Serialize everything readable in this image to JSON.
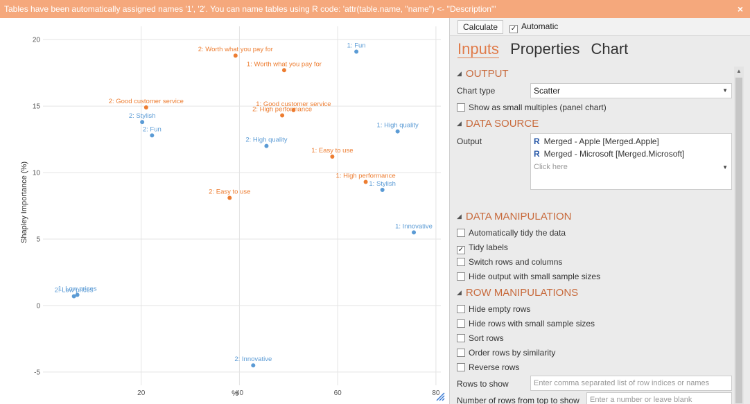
{
  "banner": {
    "message": "Tables have been automatically assigned names '1', '2'. You can name tables using R code: 'attr(table.name, \"name\") <- \"Description\"'",
    "close_icon": "×"
  },
  "toolbar": {
    "calculate_label": "Calculate",
    "automatic_label": "Automatic",
    "automatic_checked": true
  },
  "tabs": [
    {
      "label": "Inputs",
      "active": true
    },
    {
      "label": "Properties",
      "active": false
    },
    {
      "label": "Chart",
      "active": false
    }
  ],
  "sections": {
    "output": "OUTPUT",
    "data_source": "DATA SOURCE",
    "data_manipulation": "DATA MANIPULATION",
    "row_manipulations": "ROW MANIPULATIONS"
  },
  "output": {
    "chart_type_label": "Chart type",
    "chart_type_value": "Scatter",
    "small_multiples_label": "Show as small multiples (panel chart)"
  },
  "data_source": {
    "output_label": "Output",
    "items": [
      "Merged - Apple [Merged.Apple]",
      "Merged - Microsoft [Merged.Microsoft]"
    ],
    "r_glyph": "R",
    "click_here": "Click here"
  },
  "data_manipulation": {
    "tidy_data": "Automatically tidy the data",
    "tidy_labels": "Tidy labels",
    "switch_rows": "Switch rows and columns",
    "hide_small": "Hide output with small sample sizes"
  },
  "row_manipulations": {
    "hide_empty": "Hide empty rows",
    "hide_small_rows": "Hide rows with small sample sizes",
    "sort_rows": "Sort rows",
    "order_similarity": "Order rows by similarity",
    "reverse_rows": "Reverse rows",
    "rows_to_show_label": "Rows to show",
    "rows_to_show_placeholder": "Enter comma separated list of row indices or names",
    "num_rows_label": "Number of rows from top to show",
    "num_rows_placeholder": "Enter a number or leave blank"
  },
  "colors": {
    "series1": "#5b9bd5",
    "series2": "#ed7d31",
    "accent": "#e07b4a"
  },
  "chart_data": {
    "type": "scatter",
    "xlabel": "%",
    "ylabel": "Shapley Importance (%)",
    "xlim": [
      0,
      81
    ],
    "ylim": [
      -6,
      21
    ],
    "xticks": [
      20,
      40,
      60,
      80
    ],
    "yticks": [
      -5,
      0,
      5,
      10,
      15,
      20
    ],
    "grid": true,
    "series": [
      {
        "color": "#5b9bd5",
        "points": [
          {
            "label": "1: Fun",
            "x": 63.8,
            "y": 19.1
          },
          {
            "label": "1: High quality",
            "x": 72.2,
            "y": 13.1
          },
          {
            "label": "1: Stylish",
            "x": 69.1,
            "y": 8.7
          },
          {
            "label": "1: Innovative",
            "x": 75.5,
            "y": 5.5
          },
          {
            "label": "1: Low prices",
            "x": 7.0,
            "y": 0.8
          },
          {
            "label": "2: Stylish",
            "x": 20.2,
            "y": 13.8
          },
          {
            "label": "2: Fun",
            "x": 22.2,
            "y": 12.8
          },
          {
            "label": "2: High quality",
            "x": 45.5,
            "y": 12.0
          },
          {
            "label": "2: Low prices",
            "x": 6.3,
            "y": 0.7
          },
          {
            "label": "2: Innovative",
            "x": 42.8,
            "y": -4.5
          }
        ]
      },
      {
        "color": "#ed7d31",
        "points": [
          {
            "label": "2: Worth what you pay for",
            "x": 39.2,
            "y": 18.8
          },
          {
            "label": "1: Worth what you pay for",
            "x": 49.1,
            "y": 17.7
          },
          {
            "label": "2: Good customer service",
            "x": 21.0,
            "y": 14.9
          },
          {
            "label": "1: Good customer service",
            "x": 51.0,
            "y": 14.7
          },
          {
            "label": "2: High performance",
            "x": 48.7,
            "y": 14.3
          },
          {
            "label": "1: Easy to use",
            "x": 58.9,
            "y": 11.2
          },
          {
            "label": "1: High performance",
            "x": 65.7,
            "y": 9.3
          },
          {
            "label": "2: Easy to use",
            "x": 38.0,
            "y": 8.1
          }
        ]
      }
    ]
  }
}
